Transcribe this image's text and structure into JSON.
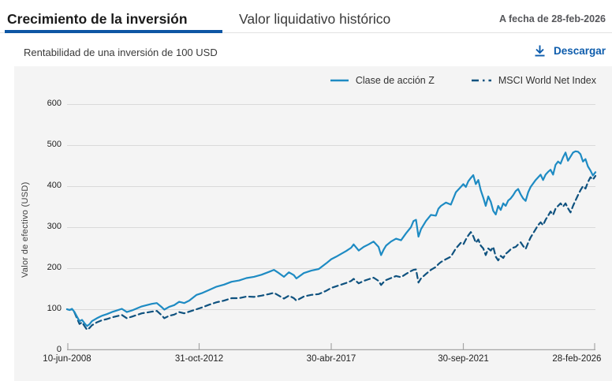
{
  "header": {
    "tabs": [
      {
        "label": "Crecimiento de la inversión",
        "active": true
      },
      {
        "label": "Valor liquidativo histórico",
        "active": false
      }
    ],
    "as_of": "A fecha de 28-feb-2026"
  },
  "toolbar": {
    "subtitle": "Rentabilidad de una inversión de 100 USD",
    "download_label": "Descargar"
  },
  "colors": {
    "accent_blue": "#0d5cac",
    "tab_underline": "#0e56a4",
    "panel_bg": "#f4f4f4",
    "grid": "#d9d9d9",
    "axis": "#a6a6a6",
    "series_fund": "#1e8bc3",
    "series_index": "#0f527f"
  },
  "chart_data": {
    "type": "line",
    "title": "Rentabilidad de una inversión de 100 USD",
    "ylabel": "Valor de efectivo (USD)",
    "ylim": [
      0,
      600
    ],
    "yticks": [
      0,
      100,
      200,
      300,
      400,
      500,
      600
    ],
    "xlim": [
      0,
      212
    ],
    "x_unit": "months since 10-jun-2008",
    "xticks": [
      0,
      53,
      106,
      159,
      212
    ],
    "xtick_labels": [
      "10-jun-2008",
      "31-oct-2012",
      "30-abr-2017",
      "30-sep-2021",
      "28-feb-2026"
    ],
    "grid": "horizontal",
    "legend_position": "top-right",
    "series": [
      {
        "name": "MSCI World Net Index",
        "style": "dashed",
        "color": "#0f527f",
        "points": [
          [
            0,
            100
          ],
          [
            1,
            98
          ],
          [
            2,
            100
          ],
          [
            3,
            92
          ],
          [
            4,
            78
          ],
          [
            5,
            64
          ],
          [
            6,
            68
          ],
          [
            7,
            59
          ],
          [
            8,
            50
          ],
          [
            9,
            54
          ],
          [
            10,
            61
          ],
          [
            12,
            68
          ],
          [
            14,
            73
          ],
          [
            16,
            76
          ],
          [
            18,
            80
          ],
          [
            20,
            83
          ],
          [
            22,
            86
          ],
          [
            24,
            78
          ],
          [
            26,
            82
          ],
          [
            28,
            86
          ],
          [
            30,
            90
          ],
          [
            32,
            92
          ],
          [
            34,
            94
          ],
          [
            36,
            96
          ],
          [
            38,
            85
          ],
          [
            39,
            78
          ],
          [
            41,
            84
          ],
          [
            43,
            87
          ],
          [
            45,
            93
          ],
          [
            47,
            90
          ],
          [
            49,
            94
          ],
          [
            52,
            100
          ],
          [
            54,
            104
          ],
          [
            57,
            111
          ],
          [
            60,
            117
          ],
          [
            63,
            121
          ],
          [
            66,
            127
          ],
          [
            69,
            127
          ],
          [
            72,
            131
          ],
          [
            75,
            130
          ],
          [
            78,
            133
          ],
          [
            81,
            137
          ],
          [
            83,
            140
          ],
          [
            85,
            133
          ],
          [
            87,
            126
          ],
          [
            89,
            133
          ],
          [
            91,
            127
          ],
          [
            92,
            121
          ],
          [
            95,
            131
          ],
          [
            98,
            135
          ],
          [
            101,
            137
          ],
          [
            104,
            145
          ],
          [
            106,
            152
          ],
          [
            108,
            156
          ],
          [
            110,
            160
          ],
          [
            112,
            164
          ],
          [
            114,
            169
          ],
          [
            115,
            174
          ],
          [
            117,
            163
          ],
          [
            119,
            169
          ],
          [
            121,
            173
          ],
          [
            123,
            177
          ],
          [
            125,
            169
          ],
          [
            126,
            159
          ],
          [
            127,
            166
          ],
          [
            128,
            171
          ],
          [
            130,
            176
          ],
          [
            132,
            181
          ],
          [
            134,
            178
          ],
          [
            136,
            186
          ],
          [
            138,
            193
          ],
          [
            139,
            196
          ],
          [
            140,
            197
          ],
          [
            141,
            165
          ],
          [
            142,
            175
          ],
          [
            144,
            186
          ],
          [
            146,
            196
          ],
          [
            148,
            203
          ],
          [
            149,
            210
          ],
          [
            150,
            215
          ],
          [
            152,
            222
          ],
          [
            154,
            228
          ],
          [
            156,
            248
          ],
          [
            158,
            262
          ],
          [
            159,
            258
          ],
          [
            160,
            270
          ],
          [
            161,
            280
          ],
          [
            162,
            288
          ],
          [
            163,
            278
          ],
          [
            164,
            262
          ],
          [
            165,
            270
          ],
          [
            166,
            255
          ],
          [
            167,
            248
          ],
          [
            168,
            232
          ],
          [
            169,
            248
          ],
          [
            170,
            243
          ],
          [
            171,
            252
          ],
          [
            172,
            228
          ],
          [
            173,
            219
          ],
          [
            174,
            230
          ],
          [
            175,
            225
          ],
          [
            176,
            235
          ],
          [
            177,
            240
          ],
          [
            178,
            246
          ],
          [
            179,
            250
          ],
          [
            180,
            252
          ],
          [
            181,
            258
          ],
          [
            182,
            263
          ],
          [
            183,
            254
          ],
          [
            184,
            247
          ],
          [
            185,
            262
          ],
          [
            186,
            275
          ],
          [
            187,
            285
          ],
          [
            188,
            295
          ],
          [
            189,
            305
          ],
          [
            190,
            312
          ],
          [
            191,
            305
          ],
          [
            192,
            318
          ],
          [
            193,
            328
          ],
          [
            194,
            338
          ],
          [
            195,
            330
          ],
          [
            196,
            345
          ],
          [
            197,
            352
          ],
          [
            198,
            358
          ],
          [
            199,
            350
          ],
          [
            200,
            358
          ],
          [
            201,
            346
          ],
          [
            202,
            336
          ],
          [
            203,
            352
          ],
          [
            204,
            365
          ],
          [
            205,
            378
          ],
          [
            206,
            390
          ],
          [
            207,
            400
          ],
          [
            208,
            394
          ],
          [
            209,
            410
          ],
          [
            210,
            422
          ],
          [
            211,
            416
          ],
          [
            212,
            425
          ]
        ]
      },
      {
        "name": "Clase de acción Z",
        "style": "solid",
        "color": "#1e8bc3",
        "points": [
          [
            0,
            100
          ],
          [
            1,
            98
          ],
          [
            2,
            101
          ],
          [
            3,
            93
          ],
          [
            4,
            82
          ],
          [
            5,
            71
          ],
          [
            6,
            74
          ],
          [
            7,
            66
          ],
          [
            8,
            59
          ],
          [
            9,
            63
          ],
          [
            10,
            71
          ],
          [
            12,
            78
          ],
          [
            14,
            84
          ],
          [
            16,
            88
          ],
          [
            18,
            93
          ],
          [
            20,
            97
          ],
          [
            22,
            101
          ],
          [
            24,
            93
          ],
          [
            26,
            97
          ],
          [
            28,
            102
          ],
          [
            30,
            107
          ],
          [
            32,
            110
          ],
          [
            34,
            113
          ],
          [
            36,
            115
          ],
          [
            38,
            105
          ],
          [
            39,
            99
          ],
          [
            41,
            106
          ],
          [
            43,
            110
          ],
          [
            45,
            118
          ],
          [
            47,
            115
          ],
          [
            49,
            121
          ],
          [
            52,
            135
          ],
          [
            54,
            139
          ],
          [
            57,
            147
          ],
          [
            60,
            155
          ],
          [
            63,
            160
          ],
          [
            66,
            167
          ],
          [
            69,
            170
          ],
          [
            72,
            176
          ],
          [
            75,
            179
          ],
          [
            78,
            184
          ],
          [
            81,
            191
          ],
          [
            83,
            196
          ],
          [
            85,
            188
          ],
          [
            87,
            179
          ],
          [
            89,
            190
          ],
          [
            91,
            183
          ],
          [
            92,
            175
          ],
          [
            95,
            188
          ],
          [
            98,
            194
          ],
          [
            101,
            198
          ],
          [
            104,
            212
          ],
          [
            106,
            222
          ],
          [
            108,
            228
          ],
          [
            110,
            235
          ],
          [
            112,
            242
          ],
          [
            114,
            250
          ],
          [
            115,
            258
          ],
          [
            117,
            243
          ],
          [
            119,
            252
          ],
          [
            121,
            258
          ],
          [
            123,
            265
          ],
          [
            125,
            252
          ],
          [
            126,
            232
          ],
          [
            127,
            245
          ],
          [
            128,
            255
          ],
          [
            130,
            265
          ],
          [
            132,
            272
          ],
          [
            134,
            268
          ],
          [
            136,
            285
          ],
          [
            138,
            300
          ],
          [
            139,
            315
          ],
          [
            140,
            318
          ],
          [
            141,
            277
          ],
          [
            142,
            295
          ],
          [
            144,
            315
          ],
          [
            146,
            330
          ],
          [
            148,
            328
          ],
          [
            149,
            345
          ],
          [
            150,
            352
          ],
          [
            152,
            360
          ],
          [
            154,
            355
          ],
          [
            156,
            385
          ],
          [
            158,
            398
          ],
          [
            159,
            405
          ],
          [
            160,
            398
          ],
          [
            161,
            412
          ],
          [
            162,
            420
          ],
          [
            163,
            427
          ],
          [
            164,
            405
          ],
          [
            165,
            415
          ],
          [
            166,
            390
          ],
          [
            167,
            372
          ],
          [
            168,
            352
          ],
          [
            169,
            375
          ],
          [
            170,
            362
          ],
          [
            171,
            340
          ],
          [
            172,
            331
          ],
          [
            173,
            352
          ],
          [
            174,
            342
          ],
          [
            175,
            358
          ],
          [
            176,
            352
          ],
          [
            177,
            365
          ],
          [
            178,
            370
          ],
          [
            179,
            378
          ],
          [
            180,
            388
          ],
          [
            181,
            393
          ],
          [
            182,
            380
          ],
          [
            183,
            370
          ],
          [
            184,
            364
          ],
          [
            185,
            385
          ],
          [
            186,
            398
          ],
          [
            188,
            415
          ],
          [
            190,
            428
          ],
          [
            191,
            415
          ],
          [
            192,
            428
          ],
          [
            193,
            435
          ],
          [
            194,
            440
          ],
          [
            195,
            428
          ],
          [
            196,
            452
          ],
          [
            197,
            460
          ],
          [
            198,
            455
          ],
          [
            199,
            470
          ],
          [
            200,
            482
          ],
          [
            201,
            462
          ],
          [
            202,
            472
          ],
          [
            203,
            482
          ],
          [
            204,
            485
          ],
          [
            205,
            484
          ],
          [
            206,
            478
          ],
          [
            207,
            460
          ],
          [
            208,
            466
          ],
          [
            209,
            448
          ],
          [
            210,
            438
          ],
          [
            211,
            426
          ],
          [
            212,
            434
          ]
        ]
      }
    ]
  }
}
